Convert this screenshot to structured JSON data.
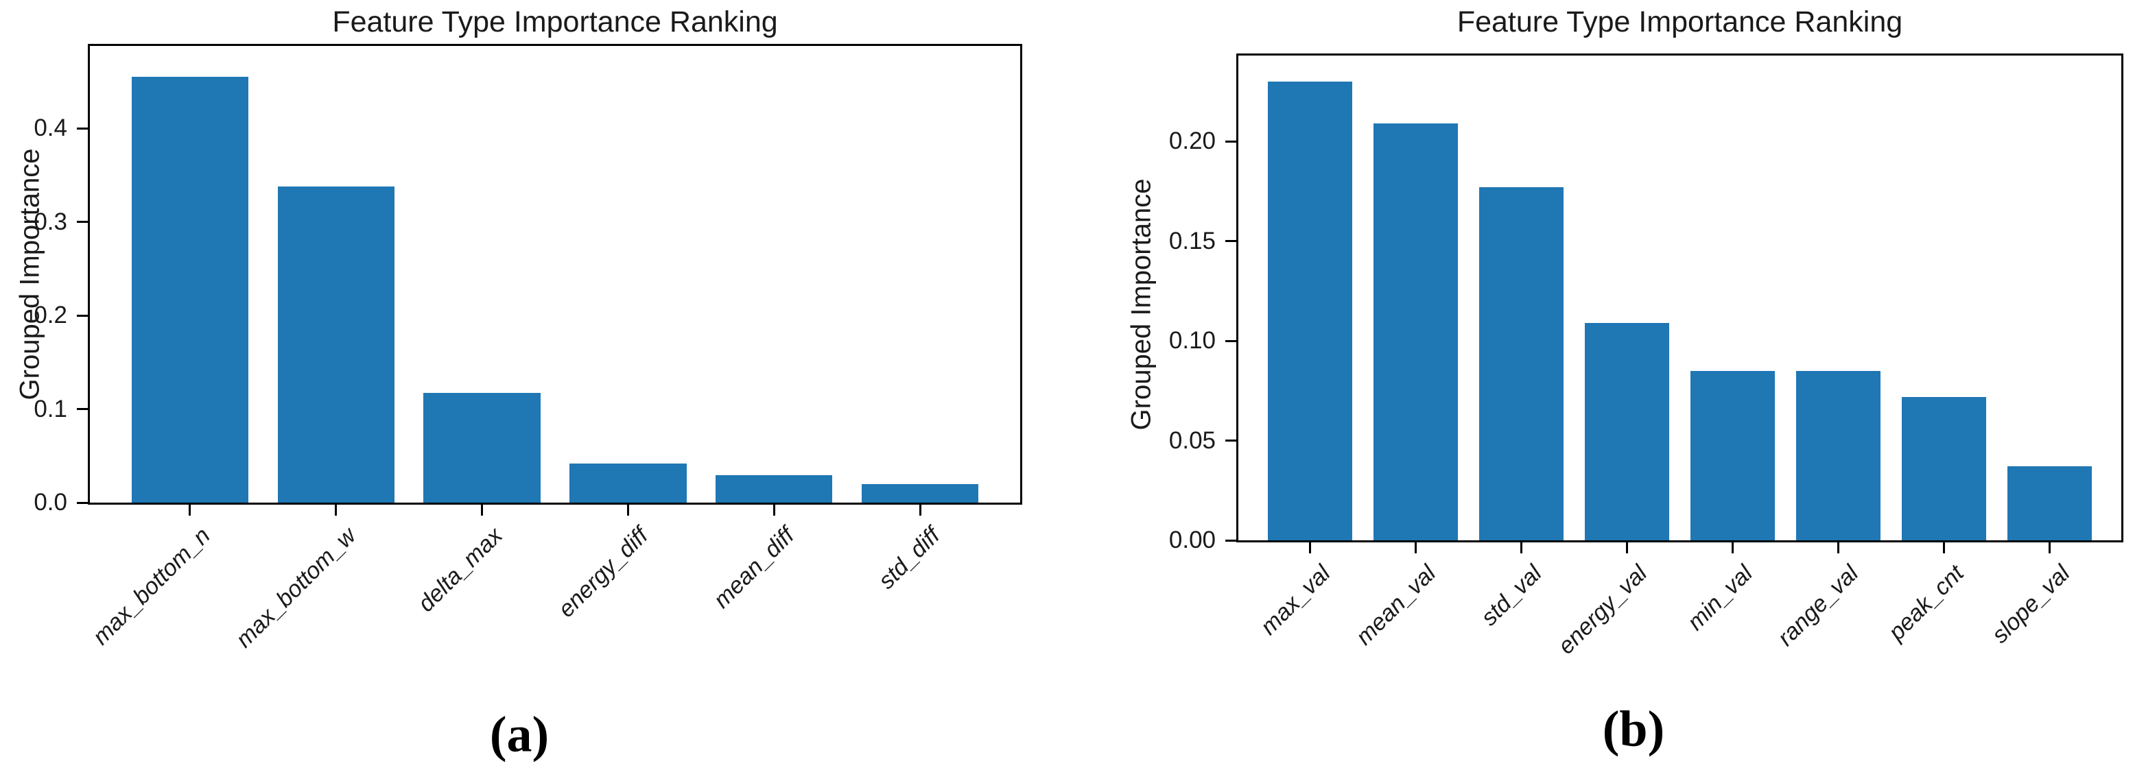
{
  "colors": {
    "bar_blue": "#1f77b4",
    "spine_black": "#000000",
    "text_dark": "#1a1a1a"
  },
  "chart_data": [
    {
      "type": "bar",
      "panel_label": "(a)",
      "title": "Feature Type Importance Ranking",
      "xlabel": "",
      "ylabel": "Grouped Importance",
      "categories": [
        "max_bottom_n",
        "max_bottom_w",
        "delta_max",
        "energy_diff",
        "mean_diff",
        "std_diff"
      ],
      "values": [
        0.455,
        0.338,
        0.117,
        0.042,
        0.029,
        0.02
      ],
      "yticks": [
        0.0,
        0.1,
        0.2,
        0.3,
        0.4
      ],
      "ytick_labels": [
        "0.0",
        "0.1",
        "0.2",
        "0.3",
        "0.4"
      ],
      "ylim": [
        0,
        0.488
      ],
      "grid": false,
      "legend": "none",
      "bar_color": "#1f77b4",
      "xtick_rotation_deg": 45,
      "xtick_style": "italic"
    },
    {
      "type": "bar",
      "panel_label": "(b)",
      "title": "Feature Type Importance Ranking",
      "xlabel": "",
      "ylabel": "Grouped Importance",
      "categories": [
        "max_val",
        "mean_val",
        "std_val",
        "energy_val",
        "min_val",
        "range_val",
        "peak_cnt",
        "slope_val"
      ],
      "values": [
        0.23,
        0.209,
        0.177,
        0.109,
        0.085,
        0.085,
        0.072,
        0.037
      ],
      "yticks": [
        0.0,
        0.05,
        0.1,
        0.15,
        0.2
      ],
      "ytick_labels": [
        "0.00",
        "0.05",
        "0.10",
        "0.15",
        "0.20"
      ],
      "ylim": [
        0,
        0.243
      ],
      "grid": false,
      "legend": "none",
      "bar_color": "#1f77b4",
      "xtick_rotation_deg": 45,
      "xtick_style": "italic"
    }
  ]
}
